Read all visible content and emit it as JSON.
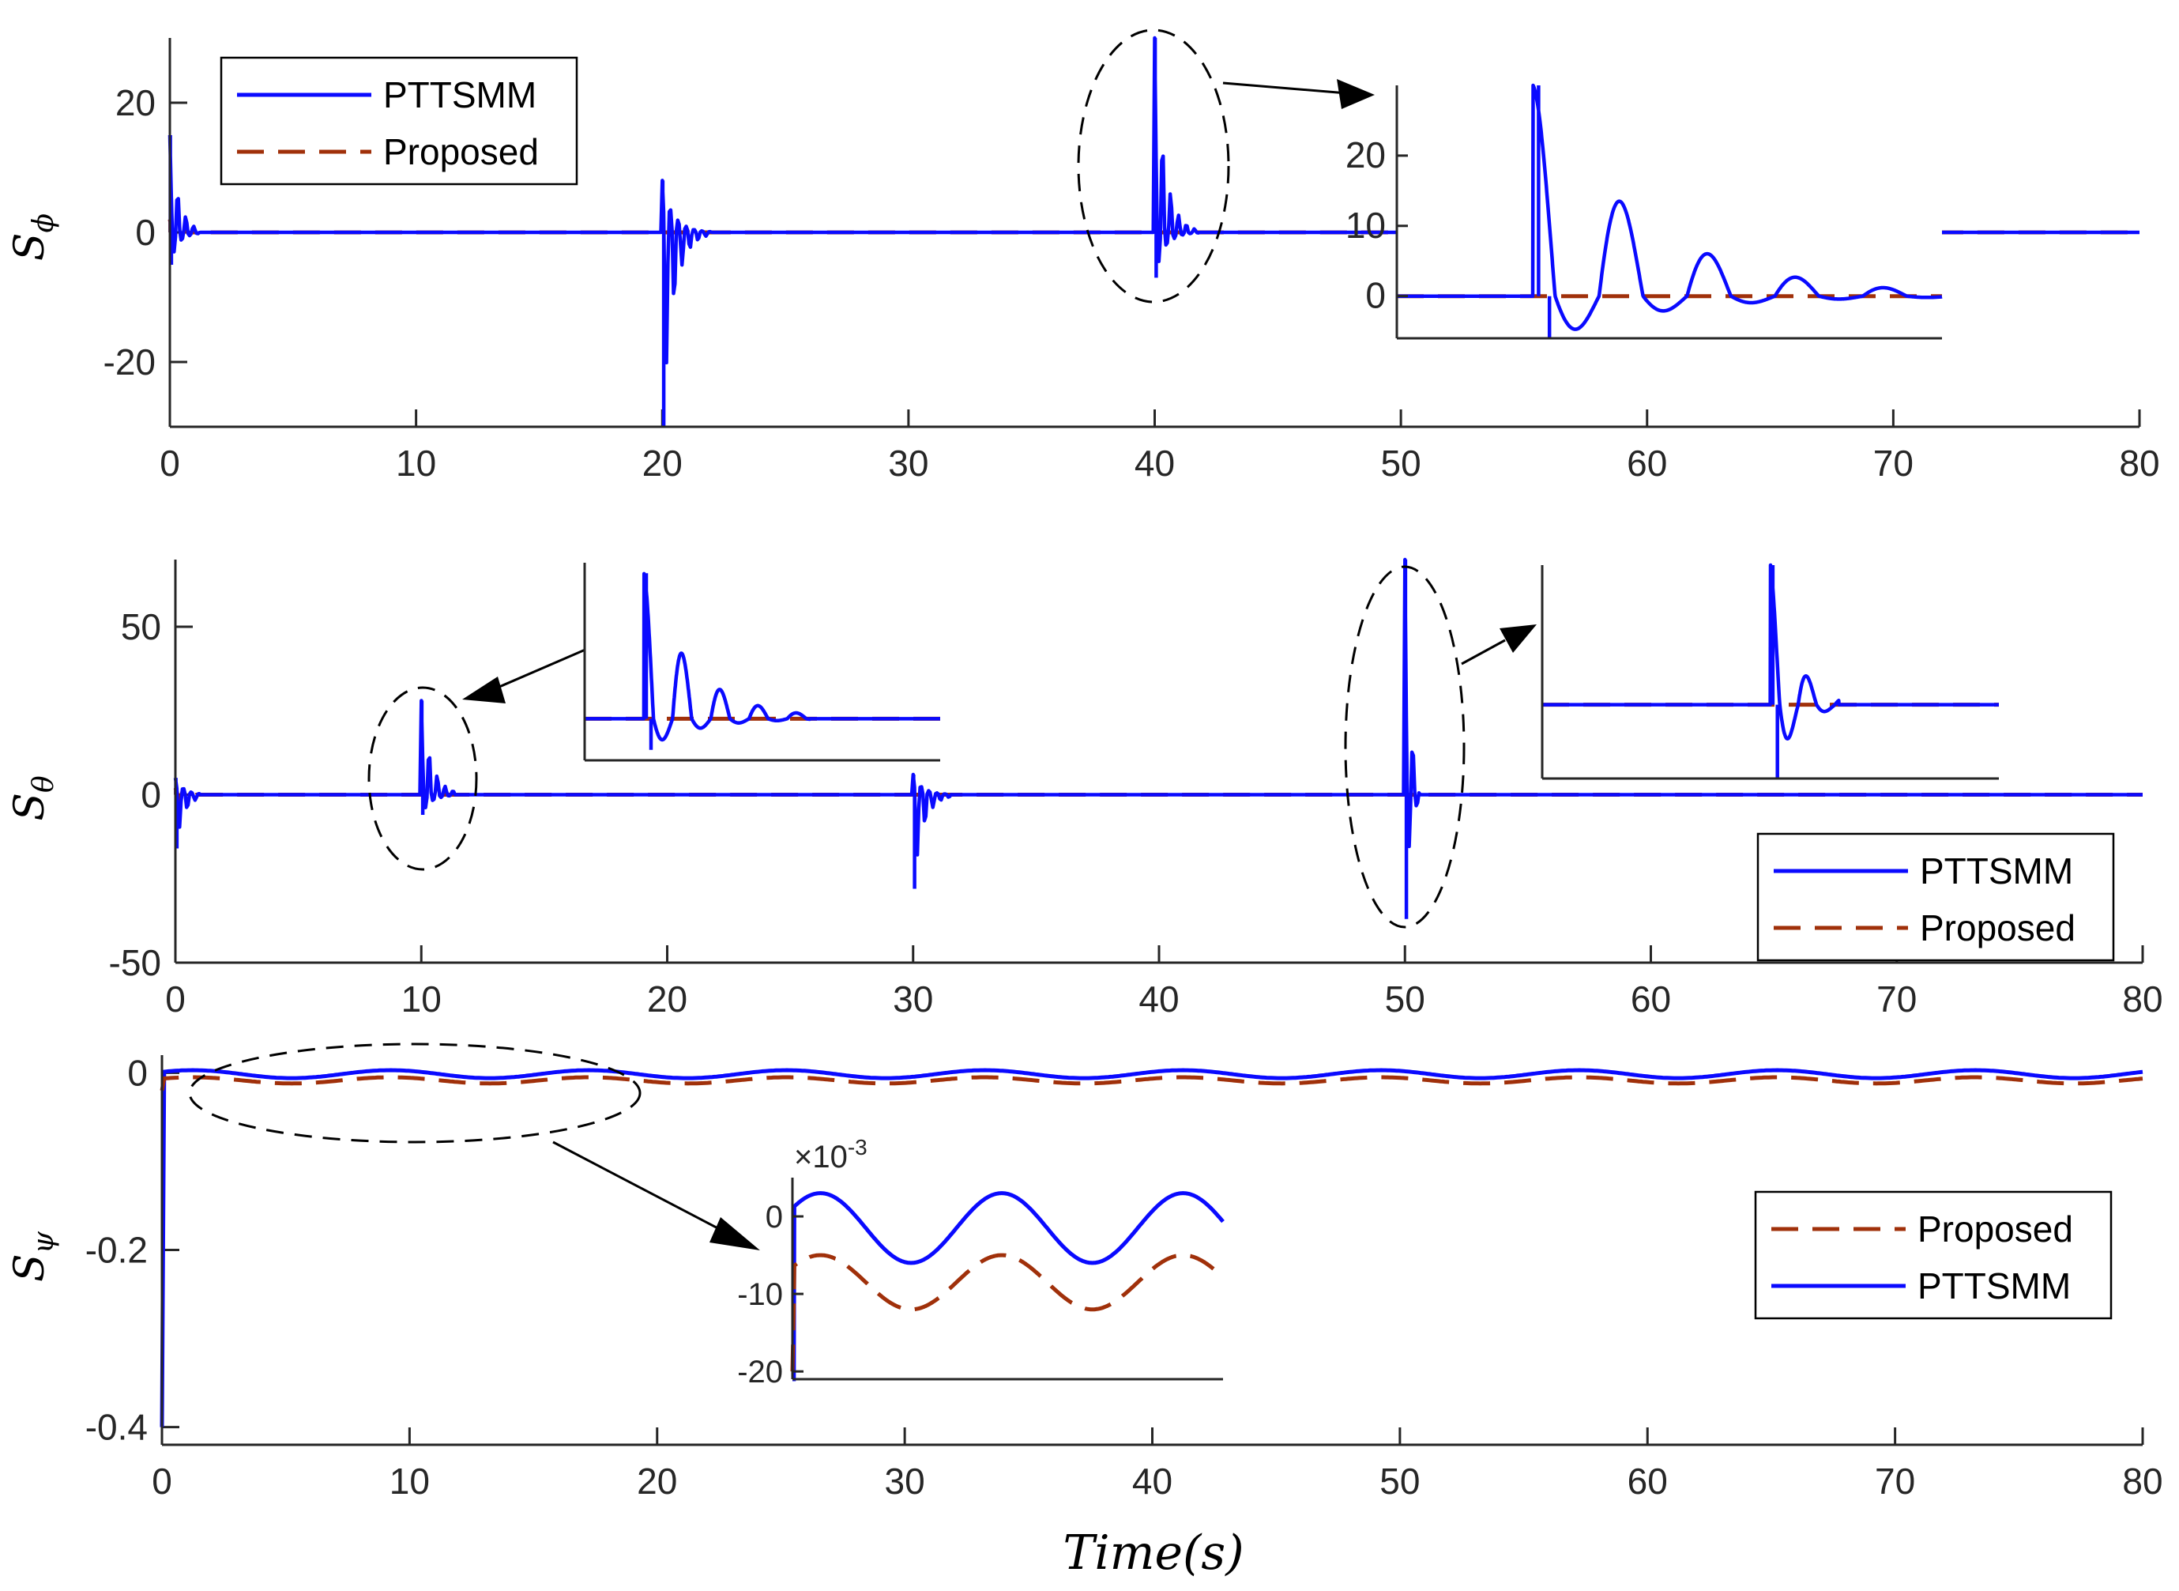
{
  "figure": {
    "xlabel": "Time(s)",
    "colors": {
      "pttsmm": "#0a0aff",
      "proposed": "#a0300a",
      "axis": "#262626"
    }
  },
  "chart_data": [
    {
      "type": "line",
      "ylabel": "Sϕ",
      "ylabel_main": "S",
      "ylabel_sub": "ϕ",
      "xlim": [
        0,
        80
      ],
      "ylim": [
        -30,
        30
      ],
      "xticks": [
        0,
        10,
        20,
        30,
        40,
        50,
        60,
        70,
        80
      ],
      "yticks": [
        -20,
        0,
        20
      ],
      "legend": {
        "location": "top-left",
        "entries": [
          "PTTSMM",
          "Proposed"
        ]
      },
      "series": [
        {
          "name": "PTTSMM",
          "style": "solid",
          "events": [
            {
              "t": 0,
              "peak": 15,
              "trough": -5,
              "decay": 0.35,
              "dur": 1.2
            },
            {
              "t": 20,
              "peak": 8,
              "trough": -30,
              "decay": 0.45,
              "dur": 2.0
            },
            {
              "t": 40,
              "peak": 30,
              "trough": -7,
              "decay": 0.4,
              "dur": 1.8
            }
          ]
        },
        {
          "name": "Proposed",
          "style": "dashed",
          "events": [
            {
              "t": 0,
              "peak": 2,
              "trough": -1.5,
              "decay": 0.5,
              "dur": 0.8
            }
          ]
        }
      ],
      "inset": {
        "xrange": [
          39.5,
          41.5
        ],
        "ylim": [
          -6,
          30
        ],
        "yticks": [
          0,
          10,
          20
        ]
      }
    },
    {
      "type": "line",
      "ylabel": "Sθ",
      "ylabel_main": "S",
      "ylabel_sub": "θ",
      "xlim": [
        0,
        80
      ],
      "ylim": [
        -50,
        70
      ],
      "xticks": [
        0,
        10,
        20,
        30,
        40,
        50,
        60,
        70,
        80
      ],
      "yticks": [
        -50,
        0,
        50
      ],
      "legend": {
        "location": "bottom-right",
        "entries": [
          "PTTSMM",
          "Proposed"
        ]
      },
      "series": [
        {
          "name": "PTTSMM",
          "style": "solid",
          "events": [
            {
              "t": 0,
              "peak": 5,
              "trough": -16,
              "decay": 0.35,
              "dur": 1.0
            },
            {
              "t": 10,
              "peak": 28,
              "trough": -6,
              "decay": 0.4,
              "dur": 1.4
            },
            {
              "t": 30,
              "peak": 6,
              "trough": -28,
              "decay": 0.4,
              "dur": 1.6
            },
            {
              "t": 50,
              "peak": 70,
              "trough": -37,
              "decay": 0.2,
              "dur": 0.6
            }
          ]
        },
        {
          "name": "Proposed",
          "style": "dashed",
          "events": [
            {
              "t": 0,
              "peak": 2,
              "trough": -2,
              "decay": 0.5,
              "dur": 0.8
            }
          ]
        }
      ],
      "insets": [
        {
          "xrange": [
            9.5,
            12.5
          ],
          "ylim": [
            -8,
            30
          ]
        },
        {
          "xrange": [
            48,
            52
          ],
          "ylim": [
            -37,
            70
          ]
        }
      ]
    },
    {
      "type": "line",
      "ylabel": "Sψ",
      "ylabel_main": "S",
      "ylabel_sub": "ψ",
      "xlim": [
        0,
        80
      ],
      "ylim": [
        -0.42,
        0.02
      ],
      "xticks": [
        0,
        10,
        20,
        30,
        40,
        50,
        60,
        70,
        80
      ],
      "yticks": [
        -0.4,
        -0.2,
        0
      ],
      "legend": {
        "location": "right",
        "entries": [
          "Proposed",
          "PTTSMM"
        ]
      },
      "series": [
        {
          "name": "PTTSMM",
          "style": "solid",
          "start": -0.4,
          "offset": -0.0015,
          "amplitude": 0.0045,
          "period": 8.0
        },
        {
          "name": "Proposed",
          "style": "dashed",
          "start": -0.02,
          "offset": -0.0085,
          "amplitude": 0.0035,
          "period": 8.0
        }
      ],
      "inset": {
        "xrange": [
          0,
          19
        ],
        "ylim": [
          -21,
          5
        ],
        "yticks": [
          -20,
          -10,
          0
        ],
        "multiplier": "×10",
        "multiplier_exp": "-3"
      }
    }
  ]
}
